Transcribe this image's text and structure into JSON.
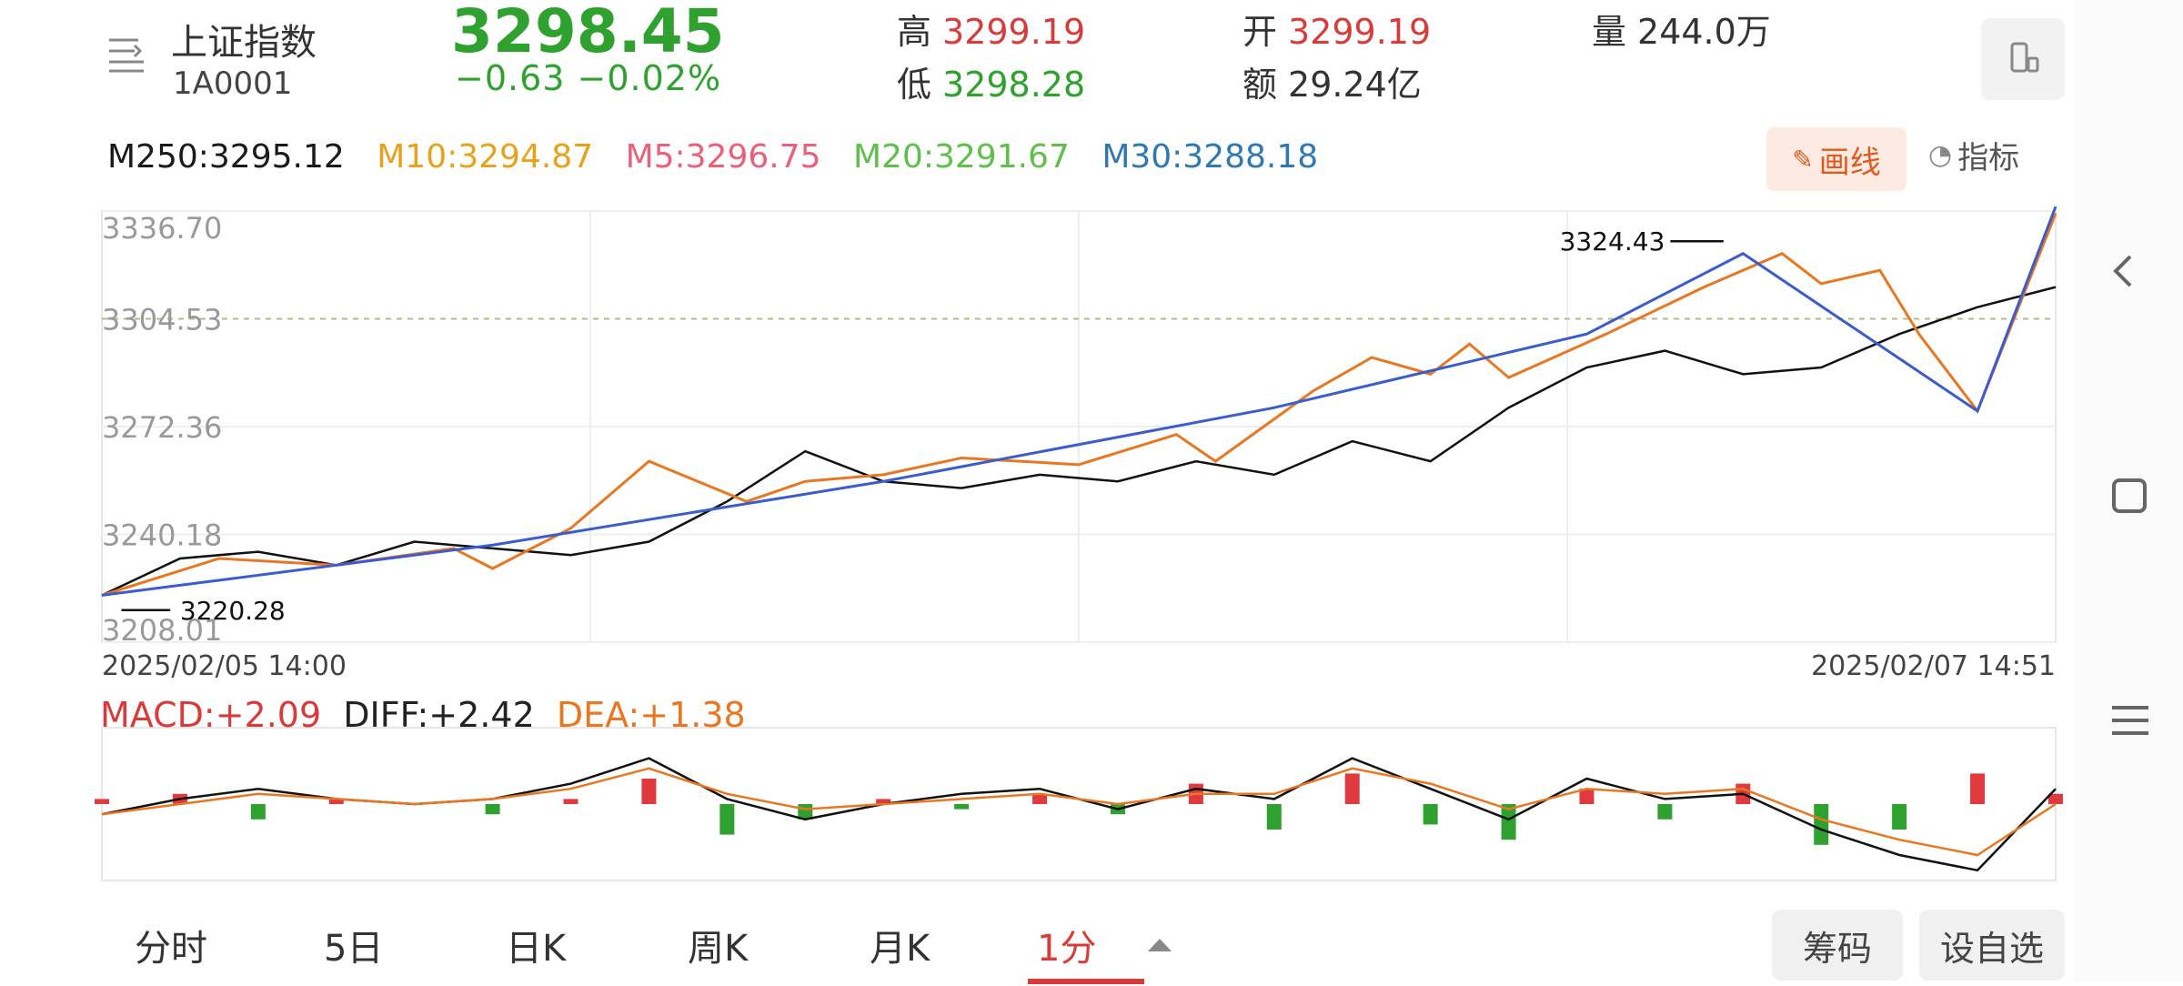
{
  "header": {
    "index_name": "上证指数",
    "index_code": "1A0001",
    "price": "3298.45",
    "change": "−0.63  −0.02%",
    "high_label": "高",
    "high_value": "3299.19",
    "low_label": "低",
    "low_value": "3298.28",
    "open_label": "开",
    "open_value": "3299.19",
    "amount_label": "额",
    "amount_value": "29.24亿",
    "volume_label": "量",
    "volume_value": "244.0万"
  },
  "ma_row": [
    {
      "text": "M250:3295.12",
      "color": "#1a1a1a"
    },
    {
      "text": "M10:3294.87",
      "color": "#e8a21a"
    },
    {
      "text": "M5:3296.75",
      "color": "#e8607a"
    },
    {
      "text": "M20:3291.67",
      "color": "#5fbf4a"
    },
    {
      "text": "M30:3288.18",
      "color": "#2f78b0"
    }
  ],
  "toolbar": {
    "draw_label": "画线",
    "indicator_label": "指标"
  },
  "macd_legend": {
    "macd": "MACD:+2.09",
    "diff": "DIFF:+2.42",
    "dea": "DEA:+1.38"
  },
  "tabs": [
    "分时",
    "5日",
    "日K",
    "周K",
    "月K",
    "1分"
  ],
  "buttons": {
    "chips": "筹码",
    "watchlist": "设自选"
  },
  "chart_data": [
    {
      "type": "line",
      "y_ticks": [
        "3336.70",
        "3304.53",
        "3272.36",
        "3240.18",
        "3208.01"
      ],
      "ylim": [
        3208.01,
        3336.7
      ],
      "reference_line": 3304.53,
      "x_start_label": "2025/02/05 14:00",
      "x_end_label": "2025/02/07 14:51",
      "annotations": {
        "max_label": "3324.43",
        "min_label": "3220.28"
      },
      "series": [
        {
          "color": "#111111",
          "x": [
            0,
            4,
            8,
            12,
            16,
            20,
            24,
            28,
            32,
            36,
            40,
            44,
            48,
            52,
            56,
            60,
            64,
            68,
            72,
            76,
            80,
            84,
            88,
            92,
            96,
            100
          ],
          "y": [
            3222,
            3233,
            3235,
            3231,
            3238,
            3236,
            3234,
            3238,
            3250,
            3265,
            3256,
            3254,
            3258,
            3256,
            3262,
            3258,
            3268,
            3262,
            3278,
            3290,
            3295,
            3288,
            3290,
            3300,
            3308,
            3314
          ]
        },
        {
          "color": "#e87722",
          "x": [
            0,
            6,
            12,
            18,
            20,
            24,
            28,
            33,
            36,
            40,
            44,
            50,
            55,
            57,
            62,
            65,
            68,
            70,
            72,
            77,
            82,
            86,
            88,
            91,
            93,
            96,
            100
          ],
          "y": [
            3222,
            3233,
            3231,
            3236,
            3230,
            3242,
            3262,
            3250,
            3256,
            3258,
            3263,
            3261,
            3270,
            3262,
            3283,
            3293,
            3288,
            3297,
            3287,
            3300,
            3314,
            3324,
            3315,
            3319,
            3300,
            3277,
            3336
          ]
        },
        {
          "color": "#3a5ccc",
          "x": [
            0,
            20,
            40,
            60,
            76,
            84,
            96,
            100
          ],
          "y": [
            3222,
            3237,
            3256,
            3278,
            3300,
            3324,
            3277,
            3338
          ]
        }
      ]
    },
    {
      "type": "bar",
      "title": "MACD",
      "ylim": [
        -15,
        15
      ],
      "x": [
        0,
        4,
        8,
        12,
        16,
        20,
        24,
        28,
        32,
        36,
        40,
        44,
        48,
        52,
        56,
        60,
        64,
        68,
        72,
        76,
        80,
        84,
        88,
        92,
        96,
        100
      ],
      "values": [
        1,
        2,
        -3,
        1,
        0,
        -2,
        1,
        5,
        -6,
        -3,
        1,
        -1,
        2,
        -2,
        4,
        -5,
        6,
        -4,
        -7,
        3,
        -3,
        4,
        -8,
        -5,
        6,
        2
      ],
      "diff": [
        -2,
        1,
        3,
        1,
        0,
        1,
        4,
        9,
        1,
        -3,
        0,
        2,
        3,
        -1,
        3,
        1,
        9,
        3,
        -3,
        5,
        1,
        2,
        -5,
        -10,
        -13,
        3
      ],
      "dea": [
        -2,
        0,
        2,
        1,
        0,
        1,
        3,
        7,
        2,
        -1,
        0,
        1,
        2,
        0,
        2,
        2,
        7,
        4,
        -1,
        3,
        2,
        3,
        -3,
        -7,
        -10,
        0
      ]
    }
  ]
}
